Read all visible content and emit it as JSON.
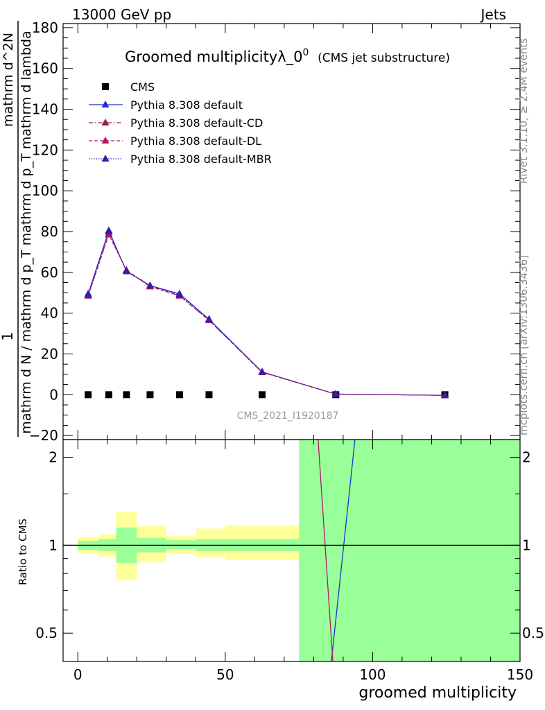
{
  "header": {
    "left": "13000 GeV pp",
    "right": "Jets"
  },
  "side_labels": {
    "rivet": "Rivet 3.1.10, ≥ 2.4M events",
    "mcplots": "mcplots.cern.ch [arXiv:1306.3436]"
  },
  "watermark": "CMS_2021_I1920187",
  "chart_data": [
    {
      "type": "line",
      "title": "Groomed multiplicityλ_0",
      "title_superscript": "0",
      "subtitle": "(CMS jet substructure)",
      "ylabel": {
        "numerator": "1",
        "denominator": "mathrm d N / mathrm d p_T mathrm d p_T mathrm d lambda",
        "top": "mathrm d^2N"
      },
      "xlim": [
        -5,
        150
      ],
      "ylim": [
        -22,
        182
      ],
      "yticks": [
        -20,
        0,
        20,
        40,
        60,
        80,
        100,
        120,
        140,
        160,
        180
      ],
      "legend_position": "top-left",
      "x": [
        3.5,
        10.5,
        16.5,
        24.5,
        34.5,
        44.5,
        62.5,
        87.5,
        124.5
      ],
      "series": [
        {
          "name": "CMS",
          "color": "#000000",
          "marker": "square",
          "line": "none",
          "values": [
            0,
            0,
            0,
            0,
            0,
            0,
            0,
            0,
            0
          ]
        },
        {
          "name": "Pythia 8.308 default",
          "color": "#1f2fd0",
          "marker": "triangle",
          "line": "solid",
          "values": [
            49.5,
            80.5,
            60.5,
            53.5,
            49.5,
            37,
            11.2,
            0.3,
            -0.3
          ]
        },
        {
          "name": "Pythia 8.308 default-CD",
          "color": "#9b1c3c",
          "marker": "triangle",
          "line": "dashdot",
          "values": [
            48.5,
            79,
            61,
            53.5,
            48.5,
            36.5,
            11,
            0.3,
            -0.3
          ]
        },
        {
          "name": "Pythia 8.308 default-DL",
          "color": "#b0186e",
          "marker": "triangle",
          "line": "dashed",
          "values": [
            48.5,
            78.5,
            61,
            53,
            48.5,
            36.5,
            11,
            0.3,
            -0.3
          ]
        },
        {
          "name": "Pythia 8.308 default-MBR",
          "color": "#3a1aa8",
          "marker": "triangle",
          "line": "dotted",
          "values": [
            49,
            80,
            60.5,
            53.5,
            49,
            37,
            11.2,
            0.3,
            -0.3
          ]
        }
      ]
    },
    {
      "type": "line",
      "ylabel": "Ratio to CMS",
      "xlabel": "groomed multiplicity",
      "yscale": "log",
      "xlim": [
        -5,
        150
      ],
      "ylim": [
        0.4,
        2.3
      ],
      "yticks": [
        0.5,
        1,
        2
      ],
      "xticks": [
        0,
        50,
        100,
        150
      ],
      "reference_line": 1,
      "bands": [
        {
          "x0": 0,
          "x1": 7,
          "inner": [
            0.965,
            1.035
          ],
          "outer": [
            0.94,
            1.065
          ]
        },
        {
          "x0": 7,
          "x1": 13,
          "inner": [
            0.955,
            1.05
          ],
          "outer": [
            0.915,
            1.09
          ]
        },
        {
          "x0": 13,
          "x1": 20,
          "inner": [
            0.87,
            1.15
          ],
          "outer": [
            0.76,
            1.3
          ]
        },
        {
          "x0": 20,
          "x1": 30,
          "inner": [
            0.945,
            1.06
          ],
          "outer": [
            0.875,
            1.165
          ]
        },
        {
          "x0": 30,
          "x1": 40,
          "inner": [
            0.97,
            1.04
          ],
          "outer": [
            0.935,
            1.075
          ]
        },
        {
          "x0": 40,
          "x1": 50,
          "inner": [
            0.955,
            1.05
          ],
          "outer": [
            0.91,
            1.14
          ]
        },
        {
          "x0": 50,
          "x1": 75,
          "inner": [
            0.955,
            1.05
          ],
          "outer": [
            0.89,
            1.17
          ]
        },
        {
          "x0": 75,
          "x1": 150,
          "inner": [
            0.4,
            2.3
          ],
          "outer": [
            0.4,
            2.3
          ]
        }
      ],
      "ratio_lines": [
        {
          "name": "Pythia 8.308 default",
          "color": "#1f2fd0",
          "points": [
            [
              86.0,
              0.4
            ],
            [
              94.0,
              2.3
            ]
          ]
        },
        {
          "name": "Pythia 8.308 default-CD",
          "color": "#b0186e",
          "points": [
            [
              81.5,
              2.3
            ],
            [
              86.5,
              0.4
            ]
          ]
        }
      ]
    }
  ]
}
